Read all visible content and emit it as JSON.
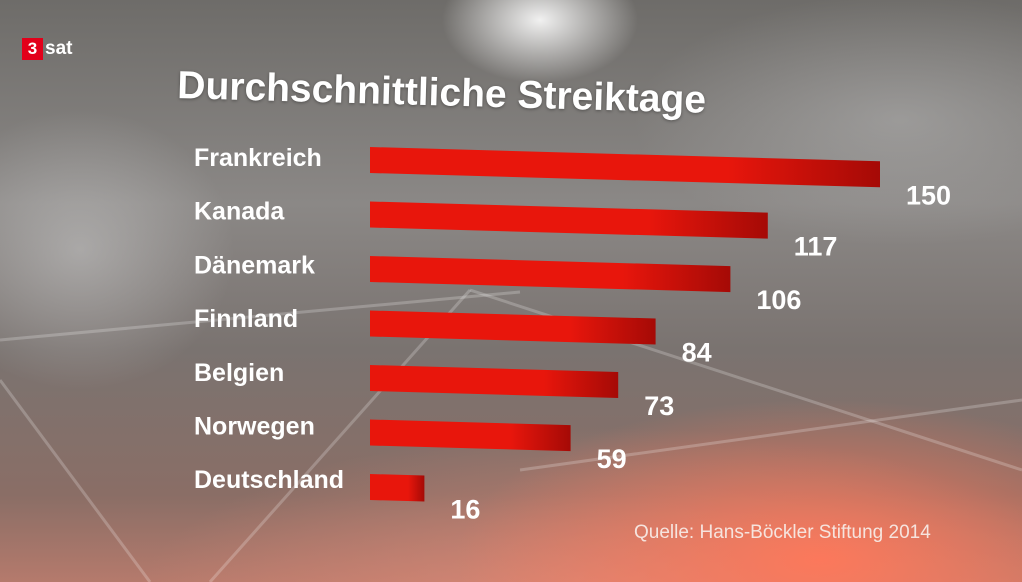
{
  "brand": {
    "logo_number": "3",
    "logo_text": "sat"
  },
  "chart_data": {
    "type": "bar",
    "orientation": "horizontal",
    "title": "Durchschnittliche Streiktage",
    "categories": [
      "Frankreich",
      "Kanada",
      "Dänemark",
      "Finnland",
      "Belgien",
      "Norwegen",
      "Deutschland"
    ],
    "values": [
      150,
      117,
      106,
      84,
      73,
      59,
      16
    ],
    "bar_color": "#e8160c",
    "bar_color_dark": "#a50a06",
    "source": "Quelle: Hans-Böckler Stiftung 2014"
  }
}
